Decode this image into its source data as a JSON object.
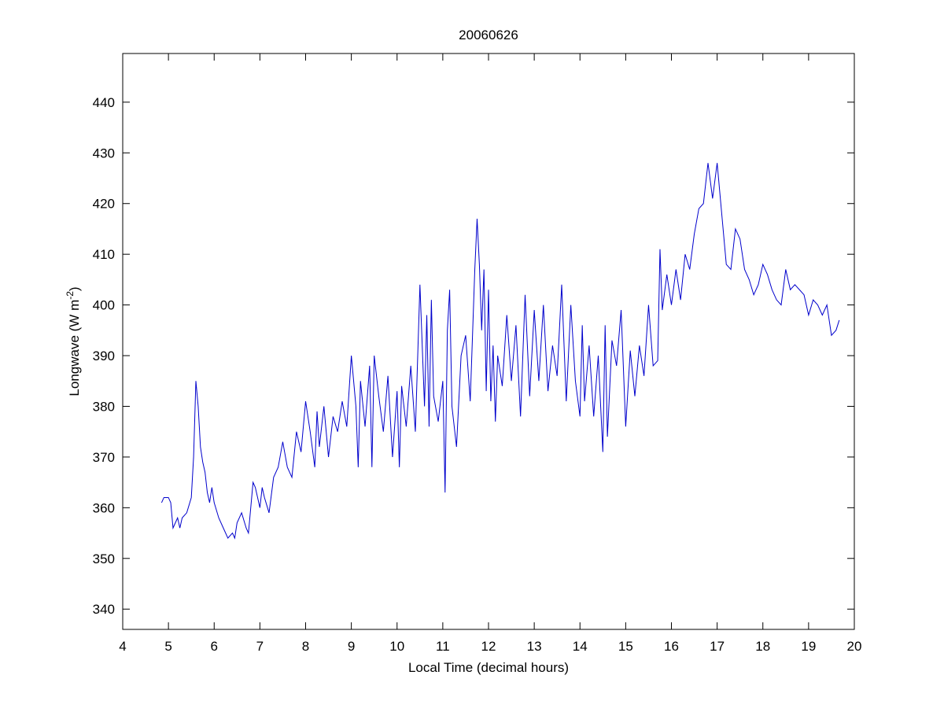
{
  "chart_data": {
    "type": "line",
    "title": "20060626",
    "xlabel": "Local Time (decimal hours)",
    "ylabel": "Longwave (W m",
    "ylabel_sup": "-2",
    "ylabel_end": ")",
    "xlim": [
      4,
      20
    ],
    "ylim": [
      336,
      449.6
    ],
    "xticks": [
      4,
      5,
      6,
      7,
      8,
      9,
      10,
      11,
      12,
      13,
      14,
      15,
      16,
      17,
      18,
      19,
      20
    ],
    "yticks": [
      340,
      350,
      360,
      370,
      380,
      390,
      400,
      410,
      420,
      430,
      440
    ],
    "grid": false,
    "x": [
      4.85,
      4.9,
      5.0,
      5.05,
      5.1,
      5.2,
      5.25,
      5.3,
      5.4,
      5.5,
      5.55,
      5.6,
      5.65,
      5.7,
      5.75,
      5.8,
      5.85,
      5.9,
      5.95,
      6.0,
      6.1,
      6.2,
      6.3,
      6.4,
      6.45,
      6.5,
      6.6,
      6.7,
      6.75,
      6.8,
      6.85,
      6.9,
      7.0,
      7.05,
      7.1,
      7.2,
      7.3,
      7.4,
      7.5,
      7.6,
      7.7,
      7.8,
      7.9,
      8.0,
      8.1,
      8.2,
      8.25,
      8.3,
      8.4,
      8.5,
      8.6,
      8.7,
      8.8,
      8.9,
      9.0,
      9.1,
      9.15,
      9.2,
      9.3,
      9.4,
      9.45,
      9.5,
      9.6,
      9.7,
      9.8,
      9.9,
      10.0,
      10.05,
      10.1,
      10.2,
      10.3,
      10.4,
      10.5,
      10.6,
      10.65,
      10.7,
      10.75,
      10.8,
      10.9,
      11.0,
      11.05,
      11.1,
      11.15,
      11.2,
      11.3,
      11.4,
      11.5,
      11.6,
      11.7,
      11.75,
      11.8,
      11.85,
      11.9,
      11.95,
      12.0,
      12.05,
      12.1,
      12.15,
      12.2,
      12.3,
      12.4,
      12.5,
      12.6,
      12.7,
      12.8,
      12.9,
      13.0,
      13.1,
      13.2,
      13.3,
      13.4,
      13.5,
      13.6,
      13.7,
      13.8,
      13.9,
      14.0,
      14.05,
      14.1,
      14.2,
      14.3,
      14.4,
      14.5,
      14.55,
      14.6,
      14.7,
      14.8,
      14.9,
      15.0,
      15.1,
      15.2,
      15.3,
      15.4,
      15.5,
      15.6,
      15.7,
      15.75,
      15.8,
      15.9,
      16.0,
      16.1,
      16.2,
      16.3,
      16.4,
      16.5,
      16.6,
      16.7,
      16.8,
      16.9,
      17.0,
      17.1,
      17.2,
      17.3,
      17.4,
      17.5,
      17.6,
      17.7,
      17.8,
      17.9,
      18.0,
      18.1,
      18.2,
      18.3,
      18.4,
      18.5,
      18.6,
      18.7,
      18.8,
      18.9,
      19.0,
      19.1,
      19.2,
      19.3,
      19.4,
      19.5,
      19.6,
      19.67
    ],
    "series": [
      {
        "color": "#0000cc",
        "values": [
          361,
          362,
          362,
          361,
          356,
          358,
          356,
          358,
          359,
          362,
          370,
          385,
          380,
          372,
          369,
          367,
          363,
          361,
          364,
          361,
          358,
          356,
          354,
          355,
          354,
          357,
          359,
          356,
          355,
          360,
          365,
          364,
          360,
          364,
          362,
          359,
          366,
          368,
          373,
          368,
          366,
          375,
          371,
          381,
          375,
          368,
          379,
          372,
          380,
          370,
          378,
          375,
          381,
          376,
          390,
          380,
          368,
          385,
          376,
          388,
          368,
          390,
          382,
          375,
          386,
          370,
          383,
          368,
          384,
          376,
          388,
          375,
          404,
          380,
          398,
          376,
          401,
          382,
          377,
          385,
          363,
          395,
          403,
          380,
          372,
          390,
          394,
          381,
          407,
          417,
          408,
          395,
          407,
          383,
          403,
          381,
          392,
          377,
          390,
          384,
          398,
          385,
          396,
          378,
          402,
          382,
          399,
          385,
          400,
          383,
          392,
          386,
          404,
          381,
          400,
          385,
          378,
          396,
          381,
          392,
          378,
          390,
          371,
          396,
          374,
          393,
          388,
          399,
          376,
          391,
          382,
          392,
          386,
          400,
          388,
          389,
          411,
          399,
          406,
          400,
          407,
          401,
          410,
          407,
          414,
          419,
          420,
          428,
          421,
          428,
          418,
          408,
          407,
          415,
          413,
          407,
          405,
          402,
          404,
          408,
          406,
          403,
          401,
          400,
          407,
          403,
          404,
          403,
          402,
          398,
          401,
          400,
          398,
          400,
          394,
          395,
          397
        ]
      }
    ]
  }
}
